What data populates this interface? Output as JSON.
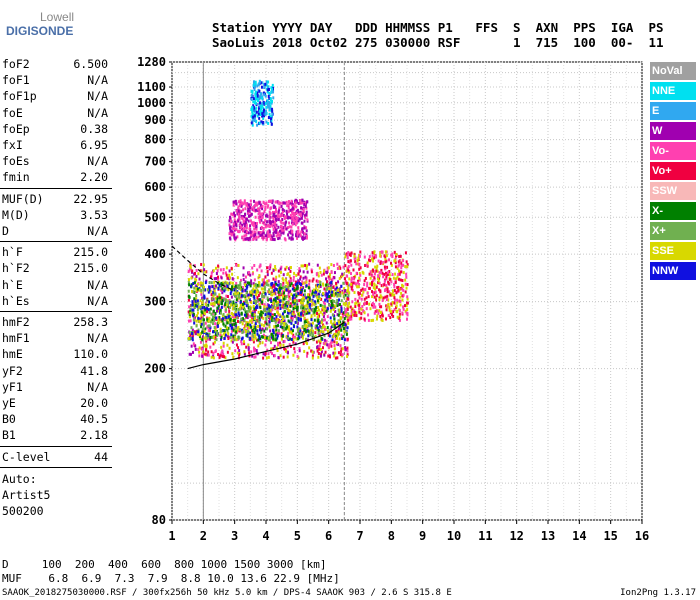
{
  "logo": {
    "top": "Lowell",
    "bottom": "DIGISONDE"
  },
  "header": {
    "line1": "Station YYYY DAY   DDD HHMMSS P1   FFS  S  AXN  PPS  IGA  PS",
    "line2": "SaoLuis 2018 Oct02 275 030000 RSF       1  715  100  00-  11"
  },
  "params": [
    {
      "k": "foF2",
      "v": "6.500"
    },
    {
      "k": "foF1",
      "v": "N/A"
    },
    {
      "k": "foF1p",
      "v": "N/A"
    },
    {
      "k": "foE",
      "v": "N/A"
    },
    {
      "k": "foEp",
      "v": "0.38"
    },
    {
      "k": "fxI",
      "v": "6.95"
    },
    {
      "k": "foEs",
      "v": "N/A"
    },
    {
      "k": "fmin",
      "v": "2.20"
    },
    {
      "k": "MUF(D)",
      "v": "22.95"
    },
    {
      "k": "M(D)",
      "v": "3.53"
    },
    {
      "k": "D",
      "v": "N/A"
    },
    {
      "k": "h`F",
      "v": "215.0"
    },
    {
      "k": "h`F2",
      "v": "215.0"
    },
    {
      "k": "h`E",
      "v": "N/A"
    },
    {
      "k": "h`Es",
      "v": "N/A"
    },
    {
      "k": "hmF2",
      "v": "258.3"
    },
    {
      "k": "hmF1",
      "v": "N/A"
    },
    {
      "k": "hmE",
      "v": "110.0"
    },
    {
      "k": "yF2",
      "v": "41.8"
    },
    {
      "k": "yF1",
      "v": "N/A"
    },
    {
      "k": "yE",
      "v": "20.0"
    },
    {
      "k": "B0",
      "v": "40.5"
    },
    {
      "k": "B1",
      "v": "2.18"
    },
    {
      "k": "C-level",
      "v": "44"
    }
  ],
  "auto": [
    "Auto:",
    "Artist5",
    "500200"
  ],
  "legend": [
    {
      "label": "NoVal",
      "color": "#a0a0a0"
    },
    {
      "label": "NNE",
      "color": "#00e0f0"
    },
    {
      "label": "E",
      "color": "#30a8f0"
    },
    {
      "label": "W",
      "color": "#a000b0"
    },
    {
      "label": "Vo-",
      "color": "#ff40b0"
    },
    {
      "label": "Vo+",
      "color": "#f00040"
    },
    {
      "label": "SSW",
      "color": "#f8b8b8"
    },
    {
      "label": "X-",
      "color": "#008000"
    },
    {
      "label": "X+",
      "color": "#70b050"
    },
    {
      "label": "SSE",
      "color": "#d8d800"
    },
    {
      "label": "NNW",
      "color": "#1010e0"
    }
  ],
  "chart_data": {
    "type": "scatter",
    "xlabel": "",
    "ylabel": "",
    "xlim": [
      1,
      16
    ],
    "ylim": [
      80,
      1280
    ],
    "y_scale": "log",
    "xticks": [
      1,
      2,
      3,
      4,
      5,
      6,
      7,
      8,
      9,
      10,
      11,
      12,
      13,
      14,
      15,
      16
    ],
    "yticks": [
      80,
      100,
      200,
      300,
      400,
      500,
      600,
      700,
      800,
      900,
      1000,
      1100,
      1200,
      1280
    ],
    "yticks_labeled": [
      80,
      200,
      300,
      400,
      500,
      600,
      700,
      800,
      900,
      1000,
      1100,
      1280
    ],
    "grid": true,
    "trace_lower": {
      "x": [
        1.5,
        2,
        3,
        4,
        5,
        6,
        6.5
      ],
      "y": [
        200,
        205,
        212,
        222,
        232,
        248,
        265
      ]
    },
    "trace_upper": {
      "x": [
        1,
        1.5,
        2,
        2.5,
        3
      ],
      "y": [
        420,
        385,
        355,
        335,
        320
      ]
    },
    "clusters": [
      {
        "x": [
          1.5,
          6.6
        ],
        "y": [
          215,
          380
        ],
        "colors": [
          "#f00040",
          "#ff40b0",
          "#a000b0",
          "#d8d800"
        ]
      },
      {
        "x": [
          1.5,
          6.6
        ],
        "y": [
          240,
          340
        ],
        "colors": [
          "#d8d800",
          "#008000",
          "#70b050",
          "#1010e0"
        ]
      },
      {
        "x": [
          6.5,
          8.5
        ],
        "y": [
          270,
          410
        ],
        "colors": [
          "#f00040",
          "#ff40b0",
          "#d8d800"
        ]
      },
      {
        "x": [
          2.8,
          5.3
        ],
        "y": [
          440,
          560
        ],
        "colors": [
          "#a000b0",
          "#ff40b0"
        ]
      },
      {
        "x": [
          3.5,
          4.2
        ],
        "y": [
          880,
          1150
        ],
        "colors": [
          "#00e0f0",
          "#30a8f0",
          "#1010e0"
        ]
      }
    ]
  },
  "bottom": {
    "d_row": "D     100  200  400  600  800 1000 1500 3000 [km]",
    "muf_row": "MUF    6.8  6.9  7.3  7.9  8.8 10.0 13.6 22.9 [MHz]"
  },
  "footer": {
    "left": "SAAOK_2018275030000.RSF / 300fx256h 50 kHz 5.0 km / DPS-4 SAAOK 903 / 2.6 S 315.8 E",
    "right": "Ion2Png 1.3.17"
  }
}
